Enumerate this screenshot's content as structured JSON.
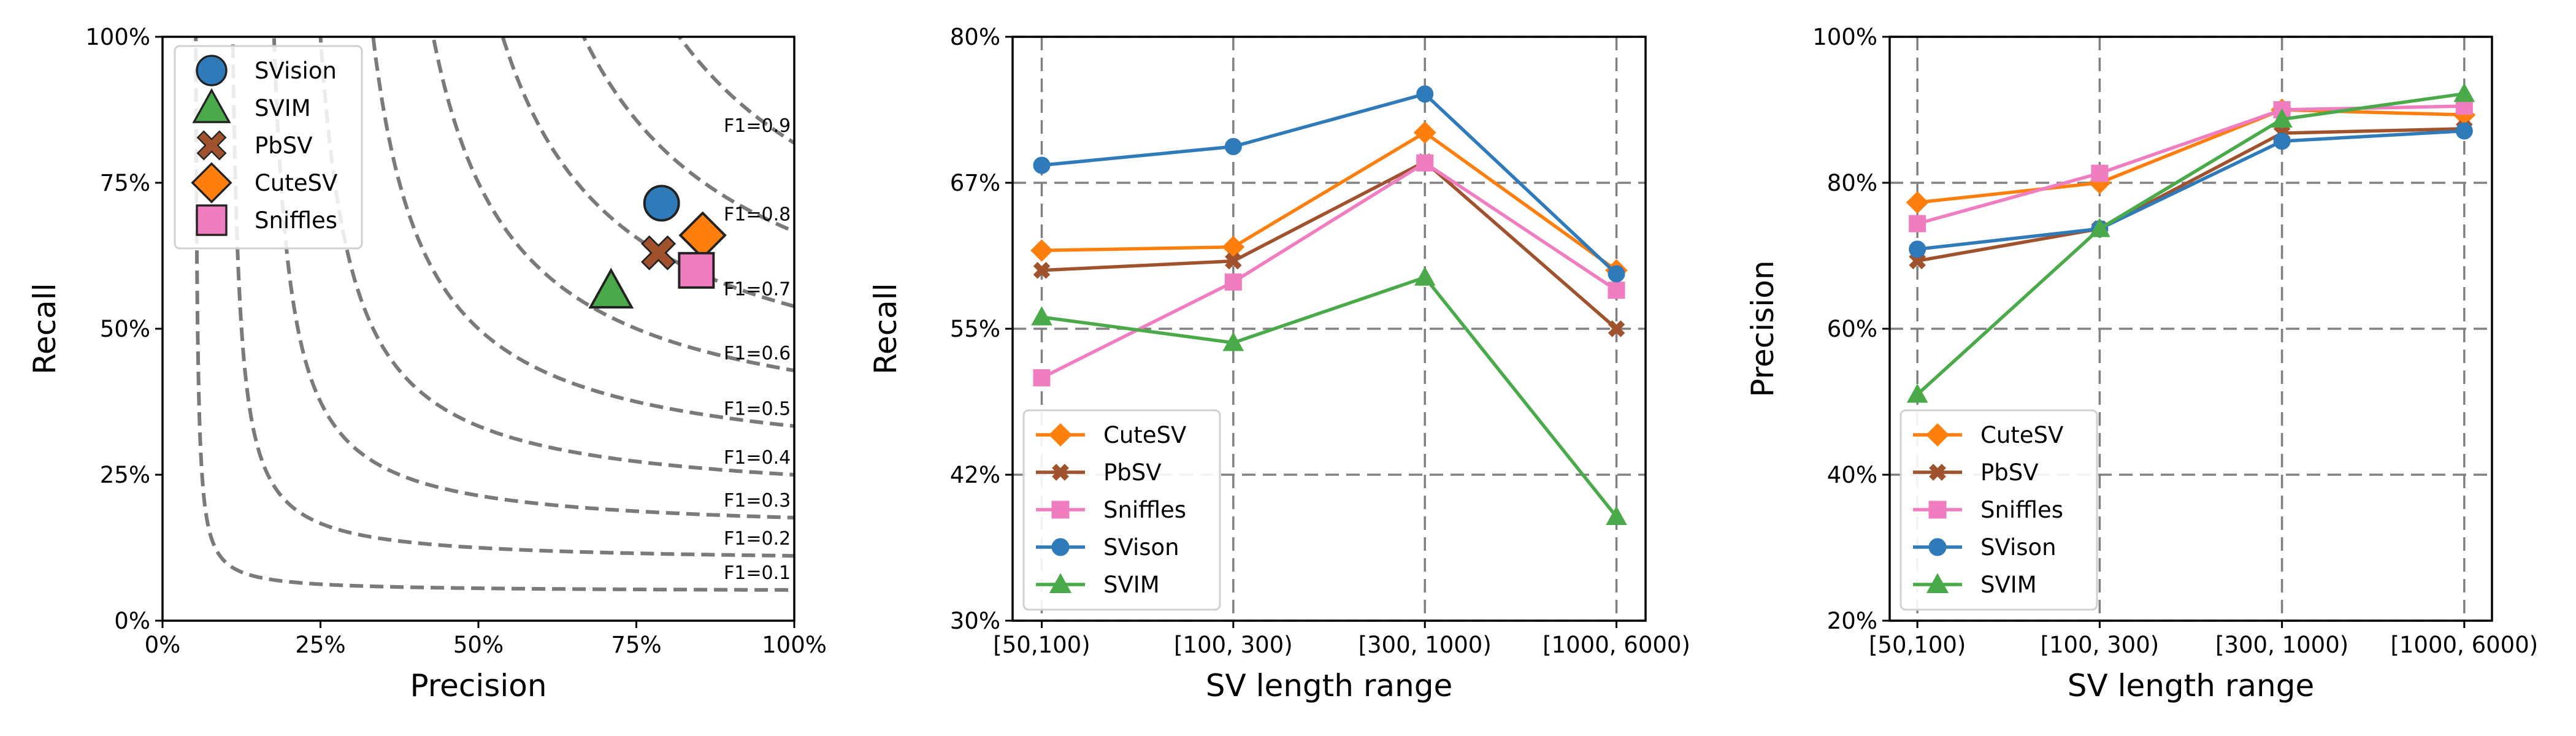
{
  "chart_data": [
    {
      "type": "scatter",
      "title": "",
      "xlabel": "Precision",
      "ylabel": "Recall",
      "xlim": [
        0,
        1
      ],
      "ylim": [
        0,
        1
      ],
      "xticks": [
        0,
        0.25,
        0.5,
        0.75,
        1
      ],
      "xtick_labels": [
        "0%",
        "25%",
        "50%",
        "75%",
        "100%"
      ],
      "yticks": [
        0,
        0.25,
        0.5,
        0.75,
        1
      ],
      "ytick_labels": [
        "0%",
        "25%",
        "50%",
        "75%",
        "100%"
      ],
      "grid": false,
      "legend_position": "top-left",
      "points": [
        {
          "name": "SVision",
          "precision": 0.79,
          "recall": 0.715,
          "marker": "circle",
          "color": "#2f7ab9"
        },
        {
          "name": "SVIM",
          "precision": 0.71,
          "recall": 0.565,
          "marker": "triangle",
          "color": "#4aaa4a"
        },
        {
          "name": "PbSV",
          "precision": 0.785,
          "recall": 0.63,
          "marker": "x",
          "color": "#a0522d"
        },
        {
          "name": "CuteSV",
          "precision": 0.855,
          "recall": 0.66,
          "marker": "diamond",
          "color": "#ff7f0e"
        },
        {
          "name": "Sniffles",
          "precision": 0.845,
          "recall": 0.6,
          "marker": "square",
          "color": "#f07dc0"
        }
      ],
      "f1_curves": [
        {
          "value": 0.1,
          "label": "F1=0.1"
        },
        {
          "value": 0.2,
          "label": "F1=0.2"
        },
        {
          "value": 0.3,
          "label": "F1=0.3"
        },
        {
          "value": 0.4,
          "label": "F1=0.4"
        },
        {
          "value": 0.5,
          "label": "F1=0.5"
        },
        {
          "value": 0.6,
          "label": "F1=0.6"
        },
        {
          "value": 0.7,
          "label": "F1=0.7"
        },
        {
          "value": 0.8,
          "label": "F1=0.8"
        },
        {
          "value": 0.9,
          "label": "F1=0.9"
        }
      ]
    },
    {
      "type": "line",
      "title": "",
      "xlabel": "SV length range",
      "ylabel": "Recall",
      "categories": [
        "[50,100)",
        "[100, 300)",
        "[300, 1000)",
        "[1000, 6000)"
      ],
      "ylim": [
        0.3,
        0.8
      ],
      "yticks": [
        0.3,
        0.425,
        0.55,
        0.675,
        0.8
      ],
      "ytick_labels": [
        "30%",
        "42%",
        "55%",
        "67%",
        "80%"
      ],
      "grid": true,
      "legend_position": "bottom-left",
      "series": [
        {
          "name": "CuteSV",
          "values": [
            0.617,
            0.62,
            0.718,
            0.6
          ],
          "color": "#ff7f0e",
          "marker": "diamond"
        },
        {
          "name": "PbSV",
          "values": [
            0.6,
            0.608,
            0.693,
            0.55
          ],
          "color": "#a0522d",
          "marker": "x"
        },
        {
          "name": "Sniffles",
          "values": [
            0.508,
            0.59,
            0.692,
            0.583
          ],
          "color": "#f07dc0",
          "marker": "square"
        },
        {
          "name": "SVison",
          "values": [
            0.69,
            0.706,
            0.751,
            0.597
          ],
          "color": "#2f7ab9",
          "marker": "circle"
        },
        {
          "name": "SVIM",
          "values": [
            0.56,
            0.538,
            0.594,
            0.389
          ],
          "color": "#4aaa4a",
          "marker": "triangle"
        }
      ]
    },
    {
      "type": "line",
      "title": "",
      "xlabel": "SV length range",
      "ylabel": "Precision",
      "categories": [
        "[50,100)",
        "[100, 300)",
        "[300, 1000)",
        "[1000, 6000)"
      ],
      "ylim": [
        0.2,
        1.0
      ],
      "yticks": [
        0.2,
        0.4,
        0.6,
        0.8,
        1.0
      ],
      "ytick_labels": [
        "20%",
        "40%",
        "60%",
        "80%",
        "100%"
      ],
      "grid": true,
      "legend_position": "bottom-left",
      "series": [
        {
          "name": "CuteSV",
          "values": [
            0.773,
            0.8,
            0.9,
            0.893
          ],
          "color": "#ff7f0e",
          "marker": "diamond"
        },
        {
          "name": "PbSV",
          "values": [
            0.693,
            0.737,
            0.868,
            0.874
          ],
          "color": "#a0522d",
          "marker": "x"
        },
        {
          "name": "Sniffles",
          "values": [
            0.744,
            0.813,
            0.9,
            0.905
          ],
          "color": "#f07dc0",
          "marker": "square"
        },
        {
          "name": "SVison",
          "values": [
            0.709,
            0.737,
            0.857,
            0.871
          ],
          "color": "#2f7ab9",
          "marker": "circle"
        },
        {
          "name": "SVIM",
          "values": [
            0.51,
            0.737,
            0.887,
            0.922
          ],
          "color": "#4aaa4a",
          "marker": "triangle"
        }
      ]
    }
  ]
}
